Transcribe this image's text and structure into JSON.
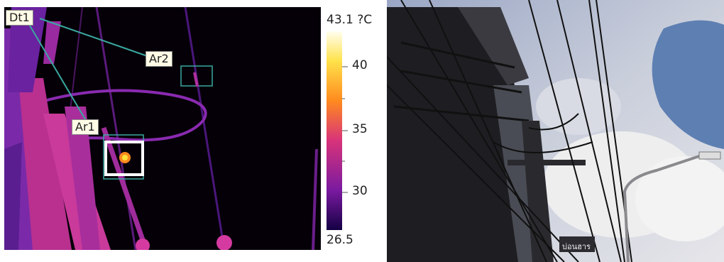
{
  "thermal": {
    "labels": {
      "spot": "Dt1",
      "area1": "Ar1",
      "area2": "Ar2"
    },
    "scale": {
      "max": "43.1 ?C",
      "min": "26.5",
      "ticks": [
        "40",
        "35",
        "30"
      ]
    },
    "colors": {
      "background": "#000000",
      "pole": "#c2329a",
      "hotspot": "#ffd23a",
      "marker": "#ffffff",
      "leader": "#3aa8a0"
    }
  },
  "photo": {
    "sign_text": "บ่อนฮาร"
  }
}
